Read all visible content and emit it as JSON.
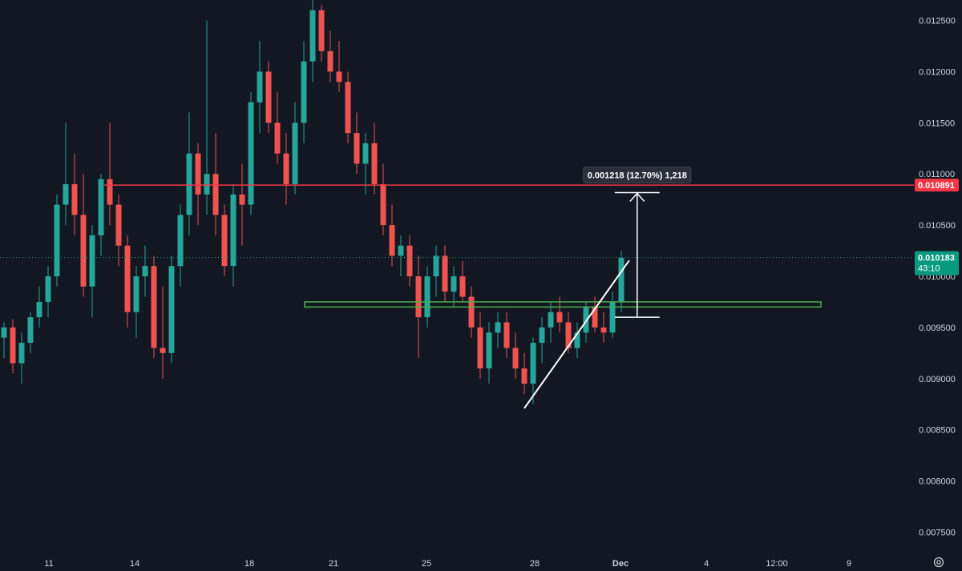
{
  "colors": {
    "background": "#131722",
    "up": "#26a69a",
    "down": "#ef5350",
    "grid_text": "#d1d4dc",
    "resistance": "#f23645",
    "support": "#4caf50",
    "current": "#089981",
    "trendline": "#ffffff"
  },
  "chart_data": {
    "type": "candlestick",
    "y_axis": {
      "ylim": [
        0.0073,
        0.0127
      ],
      "ticks": [
        "0.012500",
        "0.012000",
        "0.011500",
        "0.011000",
        "0.010500",
        "0.010000",
        "0.009500",
        "0.009000",
        "0.008500",
        "0.008000",
        "0.007500"
      ]
    },
    "x_axis": {
      "tick_labels": [
        "11",
        "14",
        "18",
        "21",
        "25",
        "28",
        "Dec",
        "4",
        "12:00",
        "9"
      ]
    },
    "candles": [
      [
        0.0094,
        0.00955,
        0.0092,
        0.0095
      ],
      [
        0.0095,
        0.00958,
        0.00905,
        0.00915
      ],
      [
        0.00915,
        0.00945,
        0.00895,
        0.00935
      ],
      [
        0.00935,
        0.00965,
        0.00925,
        0.0096
      ],
      [
        0.0096,
        0.0099,
        0.0095,
        0.00975
      ],
      [
        0.00975,
        0.0101,
        0.0096,
        0.01
      ],
      [
        0.01,
        0.0108,
        0.0099,
        0.0107
      ],
      [
        0.0107,
        0.0115,
        0.0105,
        0.0109
      ],
      [
        0.0109,
        0.0112,
        0.0104,
        0.0106
      ],
      [
        0.0106,
        0.011,
        0.0098,
        0.0099
      ],
      [
        0.0099,
        0.0105,
        0.0096,
        0.0104
      ],
      [
        0.0104,
        0.011,
        0.0102,
        0.01095
      ],
      [
        0.01095,
        0.0115,
        0.0105,
        0.0107
      ],
      [
        0.0107,
        0.0108,
        0.0101,
        0.0103
      ],
      [
        0.0103,
        0.0104,
        0.0095,
        0.00965
      ],
      [
        0.00965,
        0.0101,
        0.0094,
        0.01
      ],
      [
        0.01,
        0.0103,
        0.0098,
        0.0101
      ],
      [
        0.0101,
        0.0102,
        0.0092,
        0.0093
      ],
      [
        0.0093,
        0.0099,
        0.009,
        0.00925
      ],
      [
        0.00925,
        0.0102,
        0.00915,
        0.0101
      ],
      [
        0.0101,
        0.0107,
        0.0099,
        0.0106
      ],
      [
        0.0106,
        0.0116,
        0.0104,
        0.0112
      ],
      [
        0.0112,
        0.0113,
        0.0105,
        0.0108
      ],
      [
        0.0108,
        0.0125,
        0.0106,
        0.011
      ],
      [
        0.011,
        0.0114,
        0.0104,
        0.0106
      ],
      [
        0.0106,
        0.0107,
        0.01,
        0.0101
      ],
      [
        0.0101,
        0.0109,
        0.0099,
        0.0108
      ],
      [
        0.0108,
        0.0111,
        0.0103,
        0.0107
      ],
      [
        0.0107,
        0.0118,
        0.0106,
        0.0117
      ],
      [
        0.0117,
        0.0123,
        0.0114,
        0.012
      ],
      [
        0.012,
        0.0121,
        0.0114,
        0.0115
      ],
      [
        0.0115,
        0.0118,
        0.0111,
        0.0112
      ],
      [
        0.0112,
        0.0114,
        0.0107,
        0.0109
      ],
      [
        0.0109,
        0.0117,
        0.0108,
        0.0115
      ],
      [
        0.0115,
        0.0123,
        0.0113,
        0.0121
      ],
      [
        0.0121,
        0.0127,
        0.0119,
        0.0126
      ],
      [
        0.0126,
        0.01265,
        0.0121,
        0.0122
      ],
      [
        0.0122,
        0.0124,
        0.0119,
        0.012
      ],
      [
        0.012,
        0.0123,
        0.0118,
        0.0119
      ],
      [
        0.0119,
        0.012,
        0.0113,
        0.0114
      ],
      [
        0.0114,
        0.0116,
        0.011,
        0.0111
      ],
      [
        0.0111,
        0.0114,
        0.0108,
        0.0113
      ],
      [
        0.0113,
        0.0115,
        0.0108,
        0.0109
      ],
      [
        0.0109,
        0.0111,
        0.0104,
        0.0105
      ],
      [
        0.0105,
        0.0107,
        0.0101,
        0.0102
      ],
      [
        0.0102,
        0.0104,
        0.01,
        0.0103
      ],
      [
        0.0103,
        0.0104,
        0.0099,
        0.01
      ],
      [
        0.01,
        0.0102,
        0.0092,
        0.0096
      ],
      [
        0.0096,
        0.0101,
        0.0095,
        0.01
      ],
      [
        0.01,
        0.0103,
        0.0098,
        0.0102
      ],
      [
        0.0102,
        0.0103,
        0.00975,
        0.00985
      ],
      [
        0.00985,
        0.0101,
        0.0097,
        0.01
      ],
      [
        0.01,
        0.01015,
        0.00975,
        0.0098
      ],
      [
        0.0098,
        0.0099,
        0.0094,
        0.0095
      ],
      [
        0.0095,
        0.00965,
        0.009,
        0.0091
      ],
      [
        0.0091,
        0.00955,
        0.00895,
        0.00945
      ],
      [
        0.00945,
        0.00965,
        0.0093,
        0.00955
      ],
      [
        0.00955,
        0.00965,
        0.0092,
        0.0093
      ],
      [
        0.0093,
        0.00945,
        0.009,
        0.0091
      ],
      [
        0.0091,
        0.00925,
        0.00885,
        0.00895
      ],
      [
        0.00895,
        0.0094,
        0.00875,
        0.00935
      ],
      [
        0.00935,
        0.0096,
        0.00915,
        0.0095
      ],
      [
        0.0095,
        0.00975,
        0.00935,
        0.00965
      ],
      [
        0.00965,
        0.0098,
        0.00945,
        0.00955
      ],
      [
        0.00955,
        0.00965,
        0.00925,
        0.0093
      ],
      [
        0.0093,
        0.00955,
        0.0092,
        0.00945
      ],
      [
        0.00945,
        0.00975,
        0.00935,
        0.0097
      ],
      [
        0.0097,
        0.0098,
        0.00945,
        0.0095
      ],
      [
        0.0095,
        0.00965,
        0.00935,
        0.00945
      ],
      [
        0.00945,
        0.00985,
        0.0094,
        0.00975
      ],
      [
        0.00975,
        0.01025,
        0.00965,
        0.01018
      ]
    ],
    "resistance_level": 0.010891,
    "resistance_label": "0.010891",
    "support_zone": [
      0.0097,
      0.00975
    ],
    "current_price": 0.010183,
    "current_label": "0.010183",
    "countdown": "43:10",
    "trendline": {
      "start_index": 59,
      "start_price": 0.00871,
      "end_index": 70.9,
      "end_price": 0.010155
    },
    "measure": {
      "x_index": 71.8,
      "from_price": 0.0096,
      "to_price": 0.010818,
      "label": "0.001218 (12.70%) 1,218"
    }
  }
}
